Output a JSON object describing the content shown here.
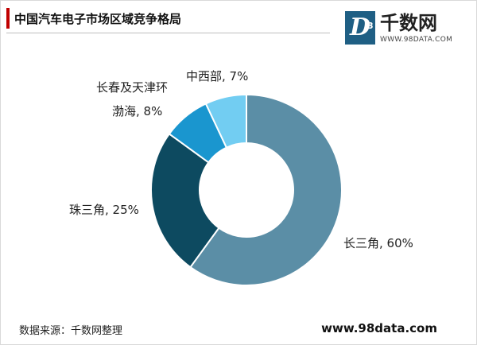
{
  "header": {
    "title": "中国汽车电子市场区域竞争格局"
  },
  "logo": {
    "mark": "D",
    "sup": "3",
    "name": "千数网",
    "url": "WWW.98DATA.COM"
  },
  "chart_data": {
    "type": "pie",
    "donut": true,
    "title": "中国汽车电子市场区域竞争格局",
    "categories": [
      "长三角",
      "珠三角",
      "长春及天津环渤海",
      "中西部"
    ],
    "values": [
      60,
      25,
      8,
      7
    ],
    "labels": {
      "csj": "长三角, 60%",
      "zsj": "珠三角, 25%",
      "bh1": "长春及天津环",
      "bh2": "渤海, 8%",
      "zxb": "中西部, 7%"
    },
    "colors": [
      "#5b8ea6",
      "#0d4a60",
      "#1a96cf",
      "#72cdf2"
    ]
  },
  "footer": {
    "source": "数据来源：千数网整理",
    "website": "www.98data.com"
  }
}
